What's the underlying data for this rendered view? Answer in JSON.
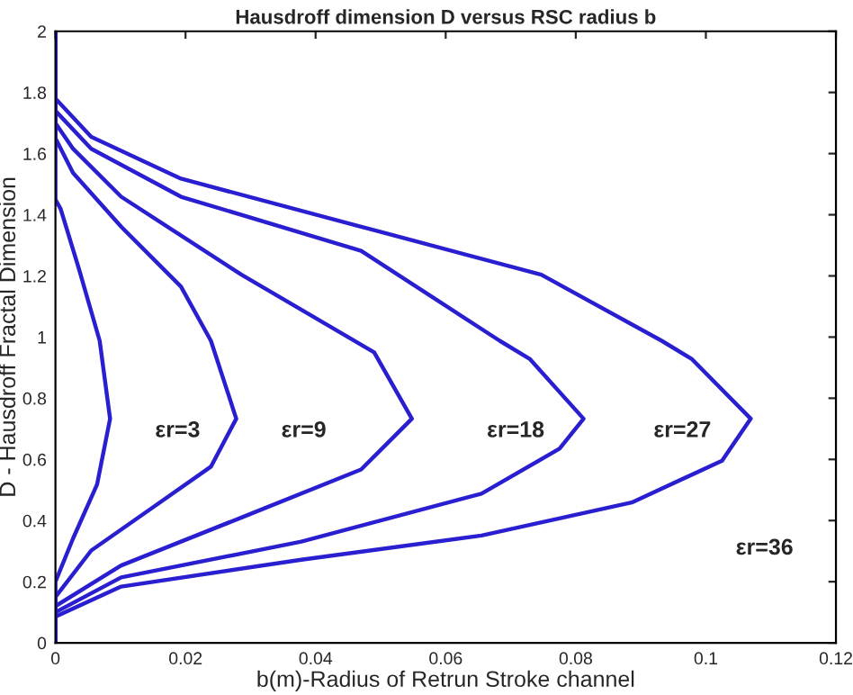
{
  "chart_data": {
    "type": "line",
    "title": "Hausdroff dimension D versus RSC radius b",
    "xlabel": "b(m)-Radius of Retrun Stroke channel",
    "ylabel": "D - Hausdroff Fractal Dimension",
    "xlim": [
      0,
      0.12
    ],
    "xticks": [
      0,
      0.02,
      0.04,
      0.06,
      0.08,
      0.1,
      0.12
    ],
    "ylim": [
      0,
      2
    ],
    "yticks": [
      0,
      0.2,
      0.4,
      0.6,
      0.8,
      1,
      1.2,
      1.4,
      1.6,
      1.8,
      2
    ],
    "grid": false,
    "legend": false,
    "marker": "none",
    "line_style": "solid",
    "series": [
      {
        "name": "εr=3",
        "color": "#2a1fd0",
        "x": [
          0,
          0,
          0.0027,
          0.0064,
          0.0084,
          0.0068,
          0.0036,
          0.0008,
          0,
          0
        ],
        "values": [
          0,
          0.2,
          0.341,
          0.518,
          0.733,
          0.988,
          1.224,
          1.419,
          1.45,
          2
        ]
      },
      {
        "name": "εr=9",
        "color": "#2a1fd0",
        "x": [
          0,
          0,
          0.0055,
          0.0147,
          0.0239,
          0.0278,
          0.0239,
          0.0193,
          0.0101,
          0.0027,
          0,
          0
        ],
        "values": [
          0,
          0.15,
          0.302,
          0.439,
          0.576,
          0.733,
          0.988,
          1.165,
          1.361,
          1.537,
          1.65,
          2
        ]
      },
      {
        "name": "εr=18",
        "color": "#2a1fd0",
        "x": [
          0,
          0,
          0.0101,
          0.0286,
          0.047,
          0.0548,
          0.049,
          0.0286,
          0.0101,
          0.0027,
          0,
          0
        ],
        "values": [
          0,
          0.12,
          0.253,
          0.41,
          0.567,
          0.733,
          0.95,
          1.204,
          1.459,
          1.616,
          1.7,
          2
        ]
      },
      {
        "name": "εr=27",
        "color": "#2a1fd0",
        "x": [
          0,
          0,
          0.0101,
          0.0378,
          0.0655,
          0.0775,
          0.0812,
          0.0729,
          0.0683,
          0.047,
          0.0193,
          0.0055,
          0,
          0
        ],
        "values": [
          0,
          0.1,
          0.214,
          0.331,
          0.488,
          0.635,
          0.733,
          0.929,
          0.988,
          1.282,
          1.459,
          1.616,
          1.74,
          2
        ]
      },
      {
        "name": "εr=36",
        "color": "#2a1fd0",
        "x": [
          0,
          0,
          0.0101,
          0.0378,
          0.0655,
          0.0886,
          0.1025,
          0.1069,
          0.0978,
          0.0932,
          0.0747,
          0.047,
          0.0193,
          0.0055,
          0,
          0
        ],
        "values": [
          0,
          0.086,
          0.184,
          0.272,
          0.351,
          0.459,
          0.596,
          0.733,
          0.929,
          0.988,
          1.204,
          1.361,
          1.518,
          1.655,
          1.78,
          2
        ]
      }
    ]
  }
}
